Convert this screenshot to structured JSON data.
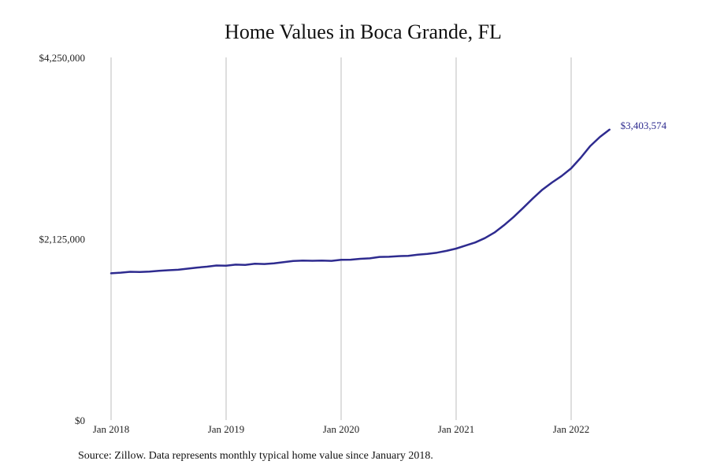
{
  "chart_data": {
    "type": "line",
    "title": "Home Values in Boca Grande, FL",
    "xlabel": "",
    "ylabel": "",
    "ylim": [
      0,
      4250000
    ],
    "y_ticks": [
      0,
      2125000,
      4250000
    ],
    "y_tick_labels": [
      "$0",
      "$2,125,000",
      "$4,250,000"
    ],
    "x_ticks": [
      "2018-01",
      "2019-01",
      "2020-01",
      "2021-01",
      "2022-01"
    ],
    "x_tick_labels": [
      "Jan 2018",
      "Jan 2019",
      "Jan 2020",
      "Jan 2021",
      "Jan 2022"
    ],
    "grid": "vertical",
    "line_color": "#2e2b8f",
    "series": [
      {
        "end_label": "$3,403,574",
        "points": [
          [
            "2018-01",
            1720000
          ],
          [
            "2018-02",
            1728000
          ],
          [
            "2018-03",
            1738000
          ],
          [
            "2018-04",
            1735000
          ],
          [
            "2018-05",
            1741000
          ],
          [
            "2018-06",
            1749000
          ],
          [
            "2018-07",
            1756000
          ],
          [
            "2018-08",
            1762000
          ],
          [
            "2018-09",
            1775000
          ],
          [
            "2018-10",
            1788000
          ],
          [
            "2018-11",
            1798000
          ],
          [
            "2018-12",
            1812000
          ],
          [
            "2019-01",
            1810000
          ],
          [
            "2019-02",
            1822000
          ],
          [
            "2019-03",
            1818000
          ],
          [
            "2019-04",
            1832000
          ],
          [
            "2019-05",
            1829000
          ],
          [
            "2019-06",
            1837000
          ],
          [
            "2019-07",
            1850000
          ],
          [
            "2019-08",
            1864000
          ],
          [
            "2019-09",
            1870000
          ],
          [
            "2019-10",
            1867000
          ],
          [
            "2019-11",
            1869000
          ],
          [
            "2019-12",
            1866000
          ],
          [
            "2020-01",
            1878000
          ],
          [
            "2020-02",
            1880000
          ],
          [
            "2020-03",
            1890000
          ],
          [
            "2020-04",
            1895000
          ],
          [
            "2020-05",
            1912000
          ],
          [
            "2020-06",
            1914000
          ],
          [
            "2020-07",
            1921000
          ],
          [
            "2020-08",
            1925000
          ],
          [
            "2020-09",
            1938000
          ],
          [
            "2020-10",
            1947000
          ],
          [
            "2020-11",
            1962000
          ],
          [
            "2020-12",
            1983000
          ],
          [
            "2021-01",
            2010000
          ],
          [
            "2021-02",
            2046000
          ],
          [
            "2021-03",
            2082000
          ],
          [
            "2021-04",
            2132000
          ],
          [
            "2021-05",
            2198000
          ],
          [
            "2021-06",
            2284000
          ],
          [
            "2021-07",
            2380000
          ],
          [
            "2021-08",
            2487000
          ],
          [
            "2021-09",
            2597000
          ],
          [
            "2021-10",
            2700000
          ],
          [
            "2021-11",
            2784000
          ],
          [
            "2021-12",
            2860000
          ],
          [
            "2022-01",
            2950000
          ],
          [
            "2022-02",
            3075000
          ],
          [
            "2022-03",
            3212000
          ],
          [
            "2022-04",
            3318000
          ],
          [
            "2022-05",
            3403574
          ]
        ]
      }
    ]
  },
  "source_note": "Source: Zillow. Data represents monthly typical home value since January 2018."
}
